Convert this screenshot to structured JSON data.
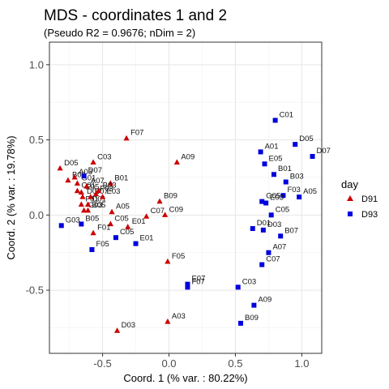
{
  "chart_data": {
    "type": "scatter",
    "title": "MDS - coordinates 1 and 2",
    "subtitle": "(Pseudo R2 = 0.9676; nDim = 2)",
    "xlabel": "Coord. 1 (% var. : 80.22%)",
    "ylabel": "Coord. 2 (% var. : 19.78%)",
    "xlim": [
      -0.9,
      1.15
    ],
    "ylim": [
      -0.92,
      1.15
    ],
    "x_ticks": [
      -0.5,
      0.0,
      0.5,
      1.0
    ],
    "x_tick_labels": [
      "-0.5",
      "0.0",
      "0.5",
      "1.0"
    ],
    "y_ticks": [
      -0.5,
      0.0,
      0.5,
      1.0
    ],
    "y_tick_labels": [
      "-0.5",
      "0.0",
      "0.5",
      "1.0"
    ],
    "grid": true,
    "legend": {
      "title": "day",
      "position": "right",
      "entries": [
        {
          "name": "D91",
          "color": "#cc0000",
          "marker": "triangle"
        },
        {
          "name": "D93",
          "color": "#0000dd",
          "marker": "square"
        }
      ]
    },
    "series": [
      {
        "name": "D91",
        "color": "#cc0000",
        "marker": "triangle",
        "points": [
          {
            "label": "D05",
            "x": -0.82,
            "y": 0.31
          },
          {
            "label": "B03",
            "x": -0.76,
            "y": 0.23
          },
          {
            "label": "A03",
            "x": -0.71,
            "y": 0.25
          },
          {
            "label": "G01",
            "x": -0.69,
            "y": 0.21
          },
          {
            "label": "C01",
            "x": -0.69,
            "y": 0.16
          },
          {
            "label": "E05",
            "x": -0.66,
            "y": 0.15
          },
          {
            "label": "D07",
            "x": -0.65,
            "y": 0.12
          },
          {
            "label": "F01",
            "x": -0.66,
            "y": 0.07
          },
          {
            "label": "G03",
            "x": -0.64,
            "y": 0.03
          },
          {
            "label": "A07",
            "x": -0.62,
            "y": 0.19
          },
          {
            "label": "C03",
            "x": -0.57,
            "y": 0.35
          },
          {
            "label": "B07",
            "x": -0.59,
            "y": 0.12
          },
          {
            "label": "D01",
            "x": -0.61,
            "y": 0.07
          },
          {
            "label": "B05",
            "x": -0.61,
            "y": 0.03
          },
          {
            "label": "F03",
            "x": -0.55,
            "y": 0.14
          },
          {
            "label": "E03",
            "x": -0.5,
            "y": 0.12
          },
          {
            "label": "B01",
            "x": -0.44,
            "y": 0.21
          },
          {
            "label": "F07",
            "x": -0.32,
            "y": 0.51
          },
          {
            "label": "B03",
            "x": -0.53,
            "y": 0.16
          },
          {
            "label": "A05",
            "x": -0.43,
            "y": 0.02
          },
          {
            "label": "C05",
            "x": -0.44,
            "y": -0.06
          },
          {
            "label": "F01",
            "x": -0.57,
            "y": -0.12
          },
          {
            "label": "E01",
            "x": -0.31,
            "y": -0.08
          },
          {
            "label": "C07",
            "x": -0.17,
            "y": -0.01
          },
          {
            "label": "B09",
            "x": -0.07,
            "y": 0.09
          },
          {
            "label": "C09",
            "x": -0.03,
            "y": 0.0
          },
          {
            "label": "A09",
            "x": 0.06,
            "y": 0.35
          },
          {
            "label": "F05",
            "x": -0.01,
            "y": -0.31
          },
          {
            "label": "A03",
            "x": -0.01,
            "y": -0.71
          },
          {
            "label": "D03",
            "x": -0.39,
            "y": -0.77
          }
        ]
      },
      {
        "name": "D93",
        "color": "#0000dd",
        "marker": "square",
        "points": [
          {
            "label": "C01",
            "x": 0.8,
            "y": 0.63
          },
          {
            "label": "D05",
            "x": 0.95,
            "y": 0.47
          },
          {
            "label": "D07",
            "x": 1.08,
            "y": 0.39
          },
          {
            "label": "A01",
            "x": 0.69,
            "y": 0.42
          },
          {
            "label": "E05",
            "x": 0.72,
            "y": 0.34
          },
          {
            "label": "B01",
            "x": 0.79,
            "y": 0.27
          },
          {
            "label": "B03",
            "x": 0.88,
            "y": 0.22
          },
          {
            "label": "F03",
            "x": 0.86,
            "y": 0.13
          },
          {
            "label": "A05",
            "x": 0.98,
            "y": 0.12
          },
          {
            "label": "G05",
            "x": 0.7,
            "y": 0.09
          },
          {
            "label": "E03",
            "x": 0.73,
            "y": 0.08
          },
          {
            "label": "C05",
            "x": 0.77,
            "y": 0.0
          },
          {
            "label": "D01",
            "x": 0.63,
            "y": -0.09
          },
          {
            "label": "D03",
            "x": 0.71,
            "y": -0.1
          },
          {
            "label": "B07",
            "x": 0.84,
            "y": -0.14
          },
          {
            "label": "A07",
            "x": 0.75,
            "y": -0.25
          },
          {
            "label": "C07",
            "x": 0.7,
            "y": -0.33
          },
          {
            "label": "C03",
            "x": 0.52,
            "y": -0.48
          },
          {
            "label": "A09",
            "x": 0.64,
            "y": -0.6
          },
          {
            "label": "B09",
            "x": 0.54,
            "y": -0.72
          },
          {
            "label": "E07",
            "x": 0.14,
            "y": -0.46
          },
          {
            "label": "F07",
            "x": 0.14,
            "y": -0.48
          },
          {
            "label": "E01",
            "x": -0.25,
            "y": -0.19
          },
          {
            "label": "C05",
            "x": -0.4,
            "y": -0.15
          },
          {
            "label": "F05",
            "x": -0.58,
            "y": -0.23
          },
          {
            "label": "B05",
            "x": -0.66,
            "y": -0.06
          },
          {
            "label": "G03",
            "x": -0.81,
            "y": -0.07
          },
          {
            "label": "D07",
            "x": -0.64,
            "y": 0.26
          }
        ]
      }
    ]
  }
}
